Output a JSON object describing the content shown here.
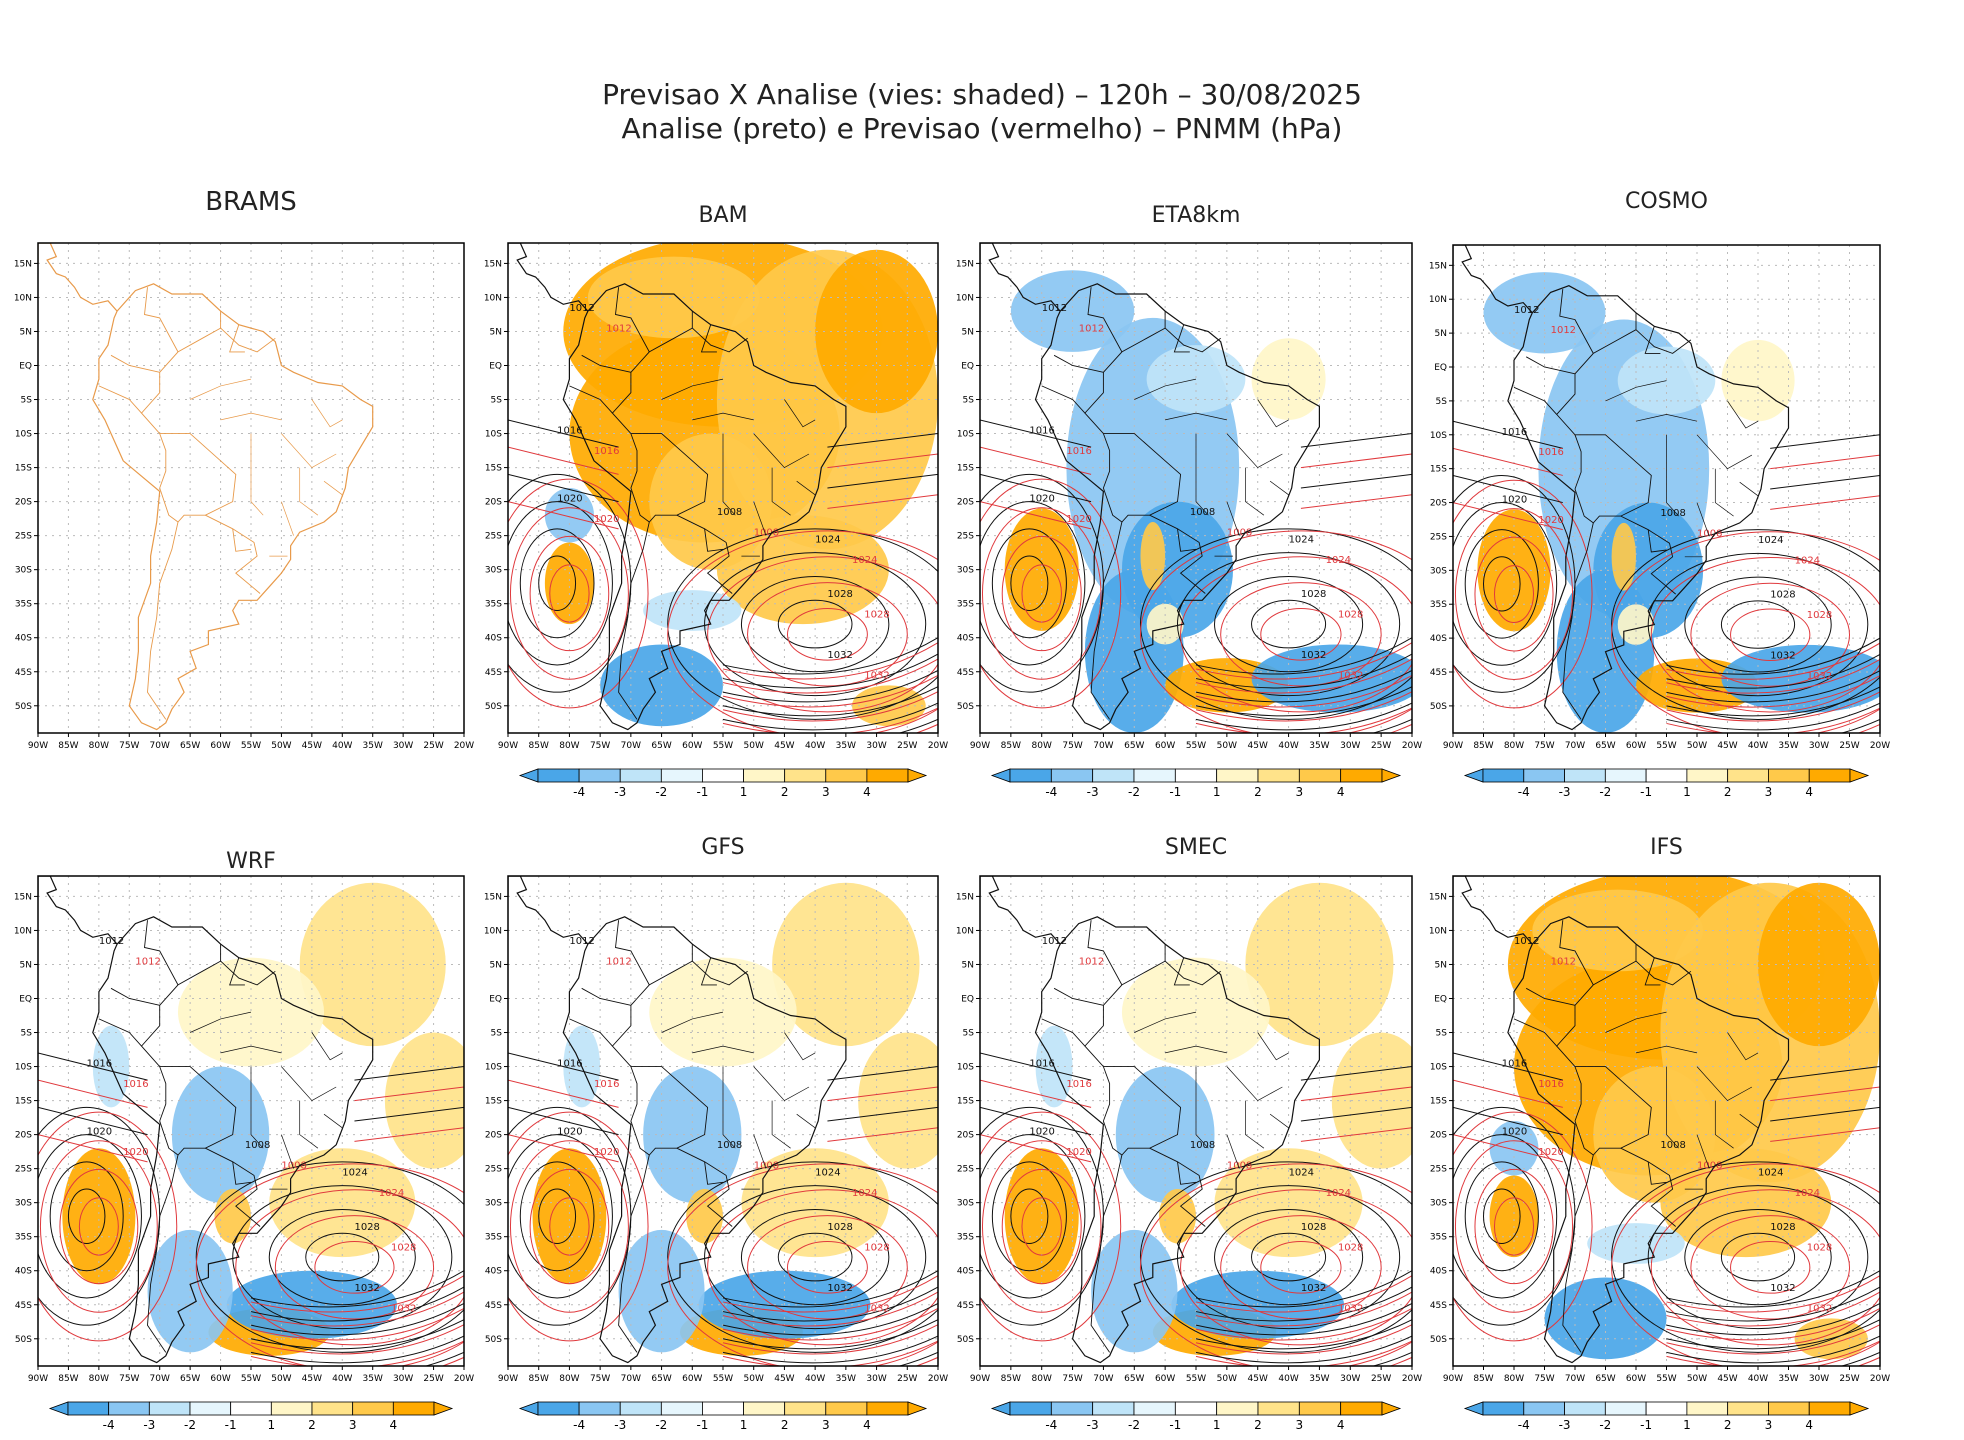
{
  "title": {
    "line1": "Previsao X Analise (vies: shaded) – 120h – 30/08/2025",
    "line2": "Analise (preto) e Previsao (vermelho) – PNMM (hPa)"
  },
  "colors": {
    "neg4": "#4aa6e8",
    "neg3": "#8ac6f2",
    "neg2": "#bfe4f8",
    "neg1": "#e6f6fd",
    "zero": "#ffffff",
    "pos1": "#fff6c8",
    "pos2": "#ffe38a",
    "pos3": "#ffc94a",
    "pos4": "#ffaa00",
    "analysis_line": "#111111",
    "forecast_line": "#e0393d",
    "coast_brams": "#e89a4a",
    "grid": "#bbbbbb"
  },
  "axes": {
    "lon_labels": [
      "90W",
      "85W",
      "80W",
      "75W",
      "70W",
      "65W",
      "60W",
      "55W",
      "50W",
      "45W",
      "40W",
      "35W",
      "30W",
      "25W",
      "20W"
    ],
    "lat_labels": [
      "15N",
      "10N",
      "5N",
      "EQ",
      "5S",
      "10S",
      "15S",
      "20S",
      "25S",
      "30S",
      "35S",
      "40S",
      "45S",
      "50S"
    ]
  },
  "colorbar": {
    "labels": [
      "-4",
      "-3",
      "-2",
      "-1",
      "1",
      "2",
      "3",
      "4"
    ]
  },
  "panels": [
    {
      "name": "BRAMS",
      "has_colorbar": false,
      "bias": "none",
      "isobars": []
    },
    {
      "name": "BAM",
      "has_colorbar": true,
      "bias": "warm",
      "isobars": [
        "1012",
        "1016",
        "1008",
        "1020",
        "1024",
        "1028",
        "1032"
      ]
    },
    {
      "name": "ETA8km",
      "has_colorbar": true,
      "bias": "cold",
      "isobars": [
        "1012",
        "1016",
        "1008",
        "1020",
        "1024",
        "1028",
        "1032"
      ]
    },
    {
      "name": "COSMO",
      "has_colorbar": true,
      "bias": "cold",
      "isobars": [
        "1012",
        "1016",
        "1008",
        "1020",
        "1024",
        "1028",
        "1032"
      ]
    },
    {
      "name": "WRF",
      "has_colorbar": true,
      "bias": "mixed",
      "isobars": [
        "1012",
        "1016",
        "1008",
        "1020",
        "1024",
        "1028",
        "1032"
      ]
    },
    {
      "name": "GFS",
      "has_colorbar": true,
      "bias": "mixed",
      "isobars": [
        "1012",
        "1016",
        "1008",
        "1020",
        "1024",
        "1028",
        "1032"
      ]
    },
    {
      "name": "SMEC",
      "has_colorbar": true,
      "bias": "mixed",
      "isobars": [
        "1012",
        "1016",
        "1008",
        "1020",
        "1024",
        "1028",
        "1032"
      ]
    },
    {
      "name": "IFS",
      "has_colorbar": true,
      "bias": "warm",
      "isobars": [
        "1012",
        "1016",
        "1008",
        "1020",
        "1024",
        "1028",
        "1032"
      ]
    }
  ]
}
